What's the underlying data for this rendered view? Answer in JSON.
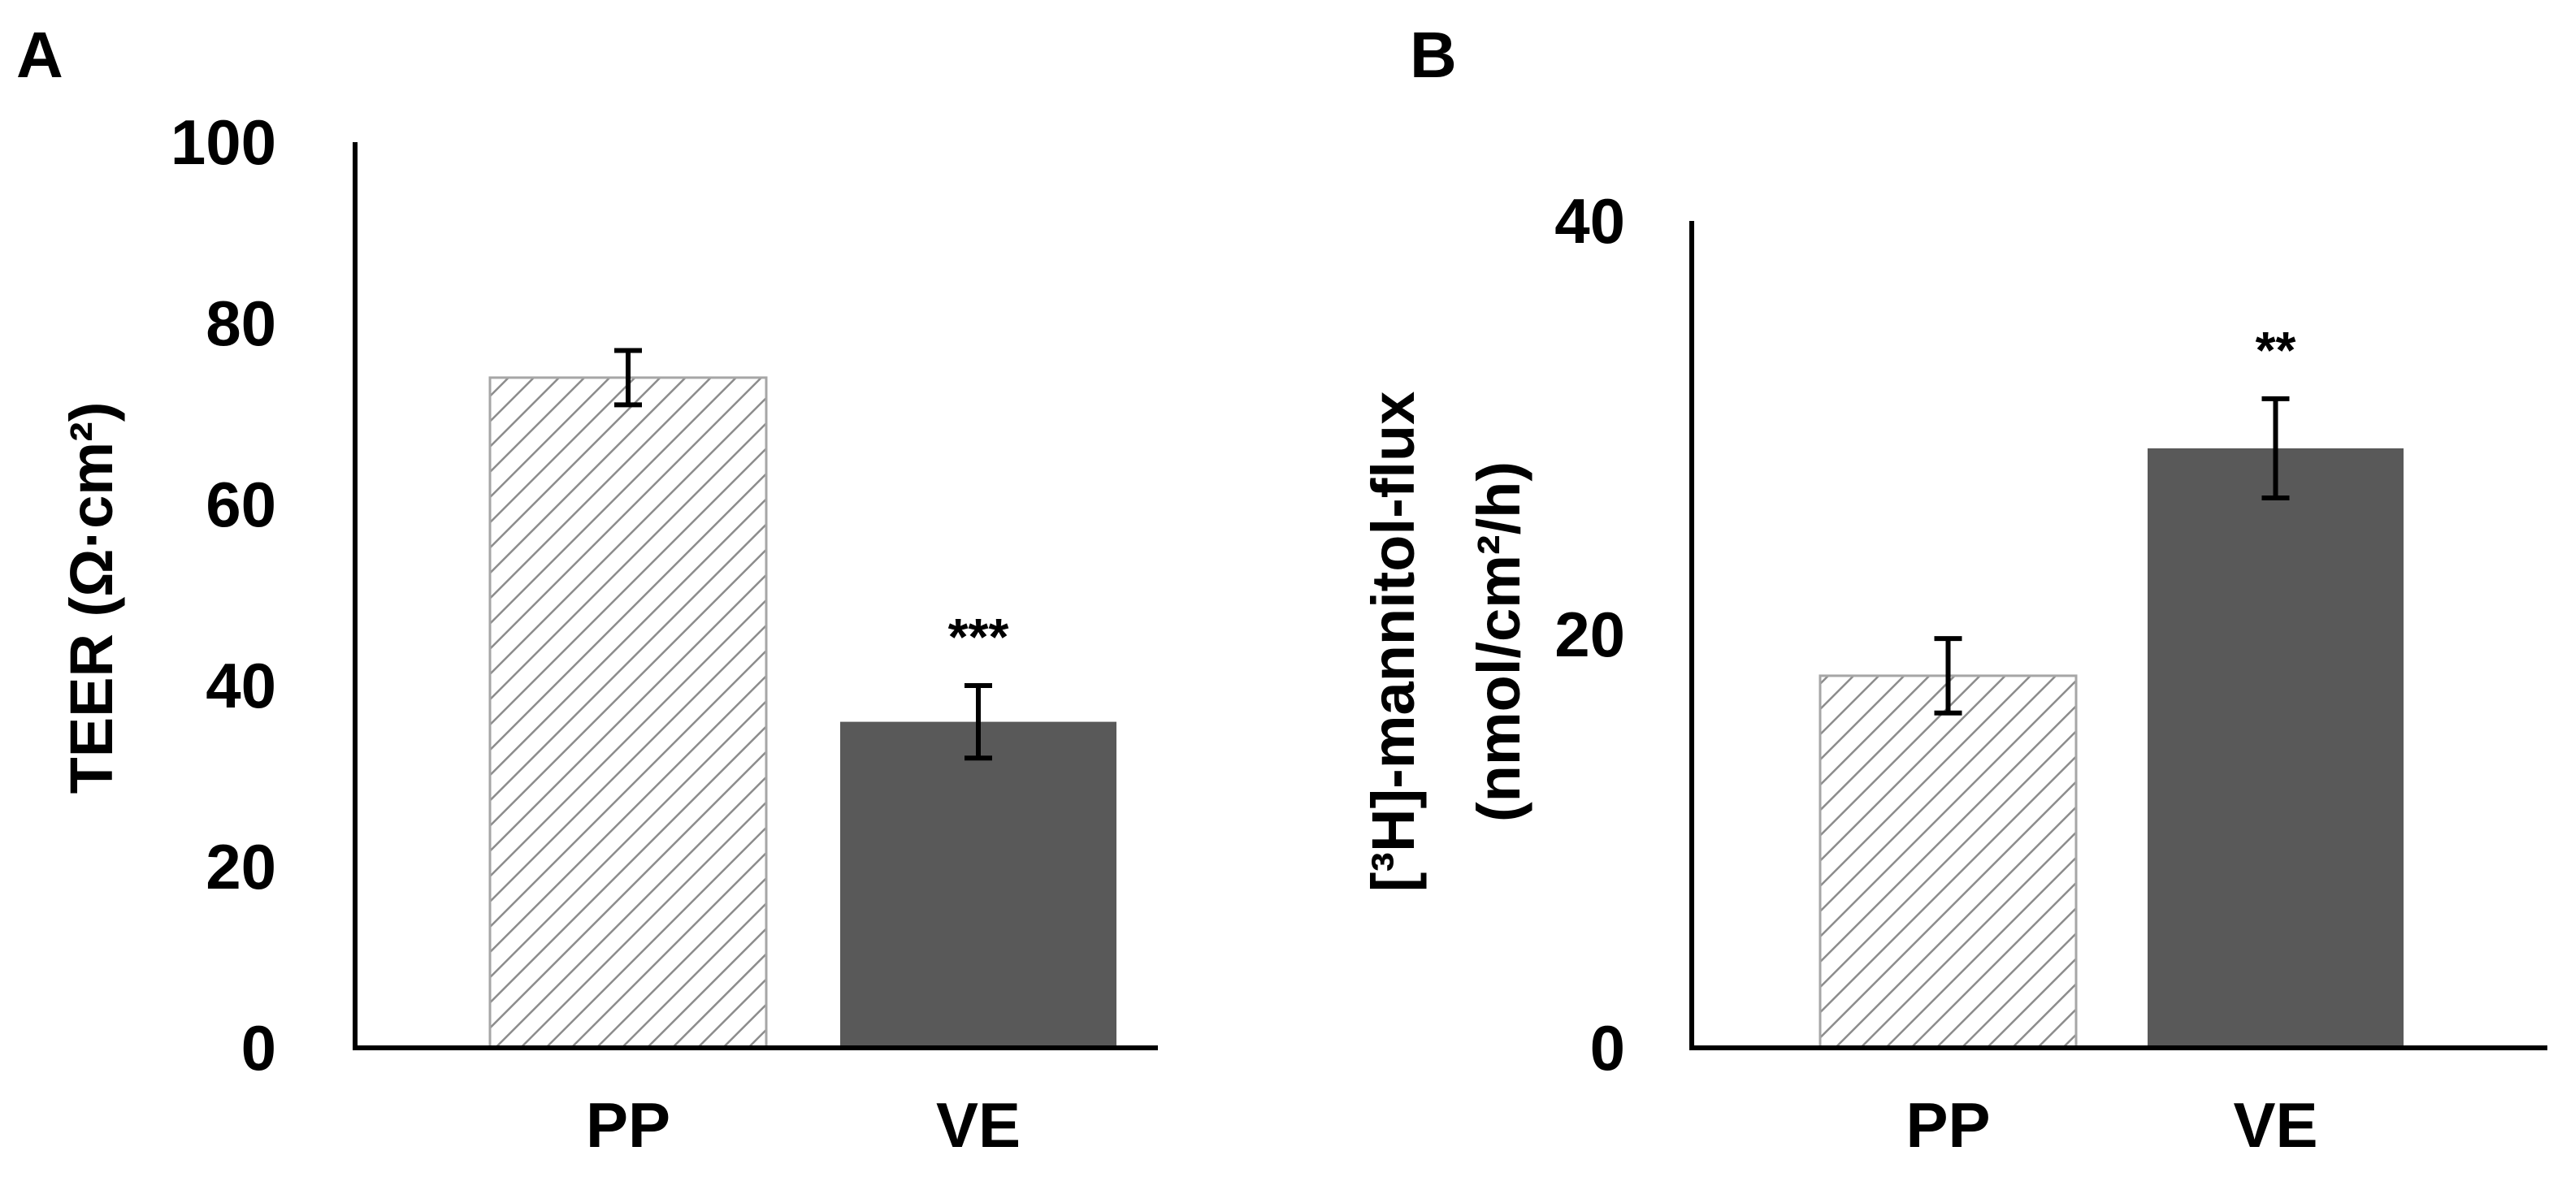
{
  "chart_data": [
    {
      "type": "bar",
      "panel_label": "A",
      "categories": [
        "PP",
        "VE"
      ],
      "values": [
        74,
        36
      ],
      "errors": [
        3,
        4
      ],
      "significance": [
        "",
        "***"
      ],
      "fills": [
        "hatched",
        "#595959"
      ],
      "ylabel": "TEER (Ω·cm²)",
      "ylim": [
        0,
        100
      ],
      "yticks": [
        0,
        20,
        40,
        60,
        80,
        100
      ]
    },
    {
      "type": "bar",
      "panel_label": "B",
      "categories": [
        "PP",
        "VE"
      ],
      "values": [
        18,
        29
      ],
      "errors": [
        1.8,
        2.4
      ],
      "significance": [
        "",
        "**"
      ],
      "fills": [
        "hatched",
        "#595959"
      ],
      "ylabel_line1": "[³H]-mannitol-flux",
      "ylabel_line2": "(nmol/cm²/h)",
      "ylim": [
        0,
        40
      ],
      "yticks": [
        0,
        20,
        40
      ]
    }
  ]
}
